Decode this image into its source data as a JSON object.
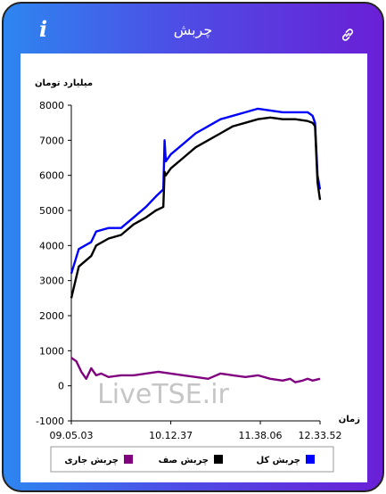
{
  "app": {
    "title": "چربش",
    "info_icon": "info-icon",
    "link_icon": "link-icon"
  },
  "watermark": "LiveTSE.ir",
  "chart_data": {
    "type": "line",
    "ylabel": "میلیارد تومان",
    "xlabel": "زمان",
    "ylim": [
      -1000,
      8000
    ],
    "yticks": [
      -1000,
      0,
      1000,
      2000,
      3000,
      4000,
      5000,
      6000,
      7000,
      8000
    ],
    "xtick_labels": [
      "09.05.03",
      "10.12.37",
      "11.38.06",
      "12.33.52"
    ],
    "xtick_positions": [
      0,
      0.4,
      0.76,
      1.0
    ],
    "grid": false,
    "legend_position": "bottom",
    "series": [
      {
        "name": "چربش کل",
        "color": "#0000ff",
        "x": [
          0,
          0.03,
          0.08,
          0.1,
          0.15,
          0.2,
          0.25,
          0.3,
          0.34,
          0.37,
          0.375,
          0.38,
          0.4,
          0.45,
          0.5,
          0.55,
          0.6,
          0.65,
          0.7,
          0.75,
          0.8,
          0.85,
          0.9,
          0.95,
          0.97,
          0.98,
          0.99,
          1.0
        ],
        "y": [
          3200,
          3900,
          4100,
          4400,
          4500,
          4500,
          4800,
          5100,
          5400,
          5600,
          7000,
          6400,
          6600,
          6900,
          7200,
          7400,
          7600,
          7700,
          7800,
          7900,
          7850,
          7800,
          7800,
          7800,
          7700,
          7500,
          6000,
          5600
        ]
      },
      {
        "name": "چربش صف",
        "color": "#000000",
        "x": [
          0,
          0.03,
          0.08,
          0.1,
          0.15,
          0.2,
          0.25,
          0.3,
          0.34,
          0.37,
          0.375,
          0.38,
          0.4,
          0.45,
          0.5,
          0.55,
          0.6,
          0.65,
          0.7,
          0.75,
          0.8,
          0.85,
          0.9,
          0.95,
          0.97,
          0.98,
          0.99,
          1.0
        ],
        "y": [
          2500,
          3400,
          3700,
          4000,
          4200,
          4300,
          4600,
          4800,
          5000,
          5100,
          6100,
          6000,
          6200,
          6500,
          6800,
          7000,
          7200,
          7400,
          7500,
          7600,
          7650,
          7600,
          7600,
          7550,
          7500,
          7400,
          5800,
          5300
        ]
      },
      {
        "name": "چربش جاری",
        "color": "#800080",
        "x": [
          0,
          0.02,
          0.04,
          0.06,
          0.08,
          0.1,
          0.12,
          0.15,
          0.2,
          0.25,
          0.3,
          0.35,
          0.4,
          0.45,
          0.5,
          0.55,
          0.6,
          0.65,
          0.7,
          0.75,
          0.8,
          0.85,
          0.88,
          0.9,
          0.93,
          0.95,
          0.97,
          1.0
        ],
        "y": [
          800,
          700,
          400,
          200,
          500,
          300,
          350,
          250,
          300,
          300,
          350,
          400,
          350,
          300,
          250,
          200,
          350,
          300,
          250,
          300,
          200,
          150,
          200,
          100,
          150,
          200,
          150,
          200
        ]
      }
    ]
  }
}
